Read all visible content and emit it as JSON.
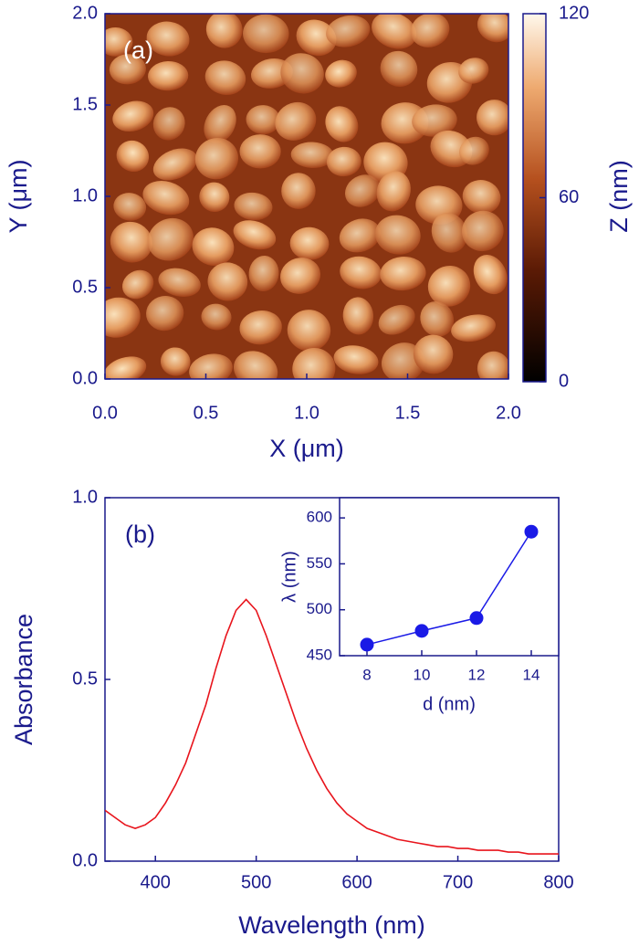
{
  "chart_data": [
    {
      "type": "image",
      "annotation": "(a)",
      "x_label": "X (μm)",
      "y_label": "Y (μm)",
      "xlim": [
        0,
        2
      ],
      "ylim": [
        0,
        2
      ],
      "xticks": [
        {
          "value": 0,
          "label": "0.0"
        },
        {
          "value": 0.5,
          "label": "0.5"
        },
        {
          "value": 1,
          "label": "1.0"
        },
        {
          "value": 1.5,
          "label": "1.5"
        },
        {
          "value": 2,
          "label": "2.0"
        }
      ],
      "yticks": [
        {
          "value": 0,
          "label": "0.0"
        },
        {
          "value": 0.5,
          "label": "0.5"
        },
        {
          "value": 1,
          "label": "1.0"
        },
        {
          "value": 1.5,
          "label": "1.5"
        },
        {
          "value": 2,
          "label": "2.0"
        }
      ],
      "colorbar_label": "Z (nm)",
      "zlim": [
        0,
        120
      ],
      "zticks": [
        0,
        60,
        120
      ]
    },
    {
      "type": "line",
      "annotation": "(b)",
      "x_label": "Wavelength (nm)",
      "y_label": "Absorbance",
      "xlim": [
        350,
        800
      ],
      "ylim": [
        0,
        1
      ],
      "xticks": [
        400,
        500,
        600,
        700,
        800
      ],
      "yticks": [
        {
          "value": 0,
          "label": "0.0"
        },
        {
          "value": 0.5,
          "label": "0.5"
        },
        {
          "value": 1,
          "label": "1.0"
        }
      ],
      "x": [
        350,
        360,
        370,
        380,
        390,
        400,
        410,
        420,
        430,
        440,
        450,
        460,
        470,
        480,
        490,
        500,
        510,
        520,
        530,
        540,
        550,
        560,
        570,
        580,
        590,
        600,
        610,
        620,
        630,
        640,
        650,
        660,
        670,
        680,
        690,
        700,
        710,
        720,
        730,
        740,
        750,
        760,
        770,
        780,
        790,
        800
      ],
      "series": [
        {
          "color": "#e8141c",
          "values": [
            0.14,
            0.12,
            0.1,
            0.09,
            0.1,
            0.12,
            0.16,
            0.21,
            0.27,
            0.35,
            0.43,
            0.53,
            0.62,
            0.69,
            0.72,
            0.69,
            0.62,
            0.54,
            0.46,
            0.38,
            0.31,
            0.25,
            0.2,
            0.16,
            0.13,
            0.11,
            0.09,
            0.08,
            0.07,
            0.06,
            0.055,
            0.05,
            0.045,
            0.04,
            0.04,
            0.035,
            0.035,
            0.03,
            0.03,
            0.03,
            0.025,
            0.025,
            0.02,
            0.02,
            0.02,
            0.02
          ]
        }
      ]
    },
    {
      "type": "line-markers",
      "x_label": "d (nm)",
      "y_label": "λ (nm)",
      "xlim": [
        7,
        15
      ],
      "ylim": [
        450,
        622
      ],
      "xticks": [
        8,
        10,
        12,
        14
      ],
      "yticks": [
        450,
        500,
        550,
        600
      ],
      "x": [
        8,
        10,
        12,
        14
      ],
      "series": [
        {
          "color": "#1a1ae6",
          "values": [
            462,
            477,
            491,
            585
          ]
        }
      ]
    }
  ]
}
